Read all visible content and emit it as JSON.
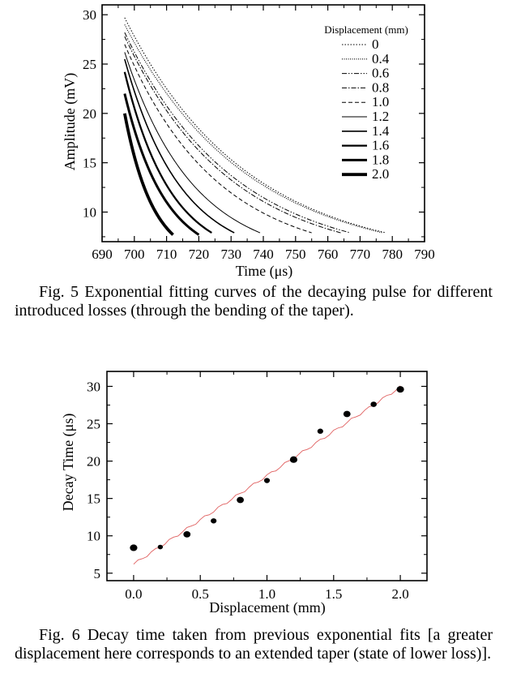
{
  "fig5": {
    "caption": "Fig. 5 Exponential fitting curves of the decaying pulse for different introduced losses (through the bending of the taper).",
    "chart_data": {
      "type": "line",
      "xlabel": "Time (μs)",
      "ylabel": "Amplitude (mV)",
      "xlim": [
        690,
        790
      ],
      "ylim": [
        7,
        31
      ],
      "xticks": [
        "690",
        "700",
        "710",
        "720",
        "730",
        "740",
        "750",
        "760",
        "770",
        "780",
        "790"
      ],
      "yticks": [
        "10",
        "15",
        "20",
        "25",
        "30"
      ],
      "grid": false,
      "legend_title": "Displacement (mm)",
      "legend_placement": "top-right",
      "series": [
        {
          "name": "0",
          "x_start": 697,
          "y_start": 29.7,
          "x_end": 778,
          "y_end": 7.9
        },
        {
          "name": "0.4",
          "x_start": 697,
          "y_start": 29.0,
          "x_end": 777,
          "y_end": 7.9
        },
        {
          "name": "0.6",
          "x_start": 697,
          "y_start": 28.2,
          "x_end": 767,
          "y_end": 7.9
        },
        {
          "name": "0.8",
          "x_start": 697,
          "y_start": 27.8,
          "x_end": 764,
          "y_end": 7.9
        },
        {
          "name": "1.0",
          "x_start": 697,
          "y_start": 27.0,
          "x_end": 755,
          "y_end": 7.9
        },
        {
          "name": "1.2",
          "x_start": 697,
          "y_start": 26.2,
          "x_end": 739,
          "y_end": 7.9
        },
        {
          "name": "1.4",
          "x_start": 697,
          "y_start": 25.5,
          "x_end": 731,
          "y_end": 7.9
        },
        {
          "name": "1.6",
          "x_start": 697,
          "y_start": 24.2,
          "x_end": 724,
          "y_end": 7.9
        },
        {
          "name": "1.8",
          "x_start": 697,
          "y_start": 22.0,
          "x_end": 720,
          "y_end": 7.7
        },
        {
          "name": "2.0",
          "x_start": 697,
          "y_start": 20.0,
          "x_end": 712,
          "y_end": 7.7
        }
      ]
    }
  },
  "fig6": {
    "caption": "Fig. 6 Decay time taken from previous exponential fits [a greater displacement here corresponds to an extended taper (state of lower loss)].",
    "chart_data": {
      "type": "scatter",
      "xlabel": "Displacement (mm)",
      "ylabel": "Decay Time (μs)",
      "xlim": [
        -0.2,
        2.2
      ],
      "ylim": [
        4,
        32
      ],
      "xticks": [
        "0.0",
        "0.5",
        "1.0",
        "1.5",
        "2.0"
      ],
      "yticks": [
        "5",
        "10",
        "15",
        "20",
        "25",
        "30"
      ],
      "grid": false,
      "points": [
        {
          "x": 0.0,
          "y": 8.4
        },
        {
          "x": 0.2,
          "y": 8.5
        },
        {
          "x": 0.4,
          "y": 10.2
        },
        {
          "x": 0.6,
          "y": 12.0
        },
        {
          "x": 0.8,
          "y": 14.8
        },
        {
          "x": 1.0,
          "y": 17.4
        },
        {
          "x": 1.2,
          "y": 20.2
        },
        {
          "x": 1.4,
          "y": 24.0
        },
        {
          "x": 1.6,
          "y": 26.3
        },
        {
          "x": 1.8,
          "y": 27.6
        },
        {
          "x": 2.0,
          "y": 29.6
        }
      ],
      "fit_line": {
        "x": [
          0.0,
          2.0
        ],
        "y": [
          6.2,
          29.9
        ],
        "color": "#e06060"
      }
    }
  }
}
